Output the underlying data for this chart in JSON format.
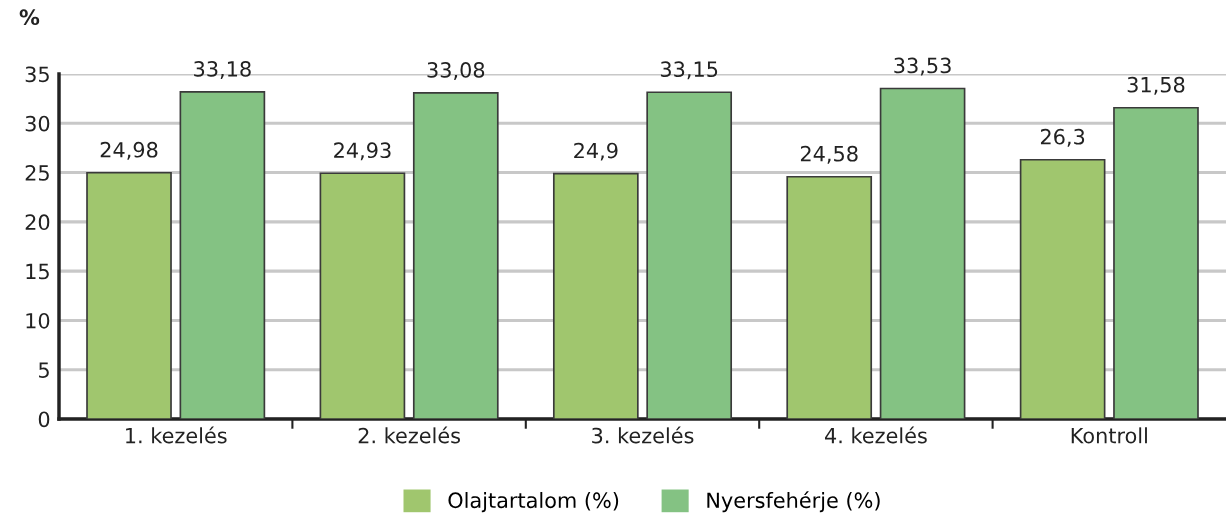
{
  "chart_data": {
    "type": "bar",
    "ylabel": "%",
    "categories": [
      "1. kezelés",
      "2. kezelés",
      "3. kezelés",
      "4. kezelés",
      "Kontroll"
    ],
    "series": [
      {
        "name": "Olajtartalom (%)",
        "color": "#a0c66e",
        "values": [
          24.98,
          24.93,
          24.9,
          24.58,
          26.3
        ],
        "value_labels": [
          "24,98",
          "24,93",
          "24,9",
          "24,58",
          "26,3"
        ]
      },
      {
        "name": "Nyersfehérje (%)",
        "color": "#84c283",
        "values": [
          33.18,
          33.08,
          33.15,
          33.53,
          31.58
        ],
        "value_labels": [
          "33,18",
          "33,08",
          "33,15",
          "33,53",
          "31,58"
        ]
      }
    ],
    "ylim": [
      0,
      35
    ],
    "yticks": [
      0,
      5,
      10,
      15,
      20,
      25,
      30,
      35
    ],
    "grid": "y",
    "legend": "bottom"
  }
}
